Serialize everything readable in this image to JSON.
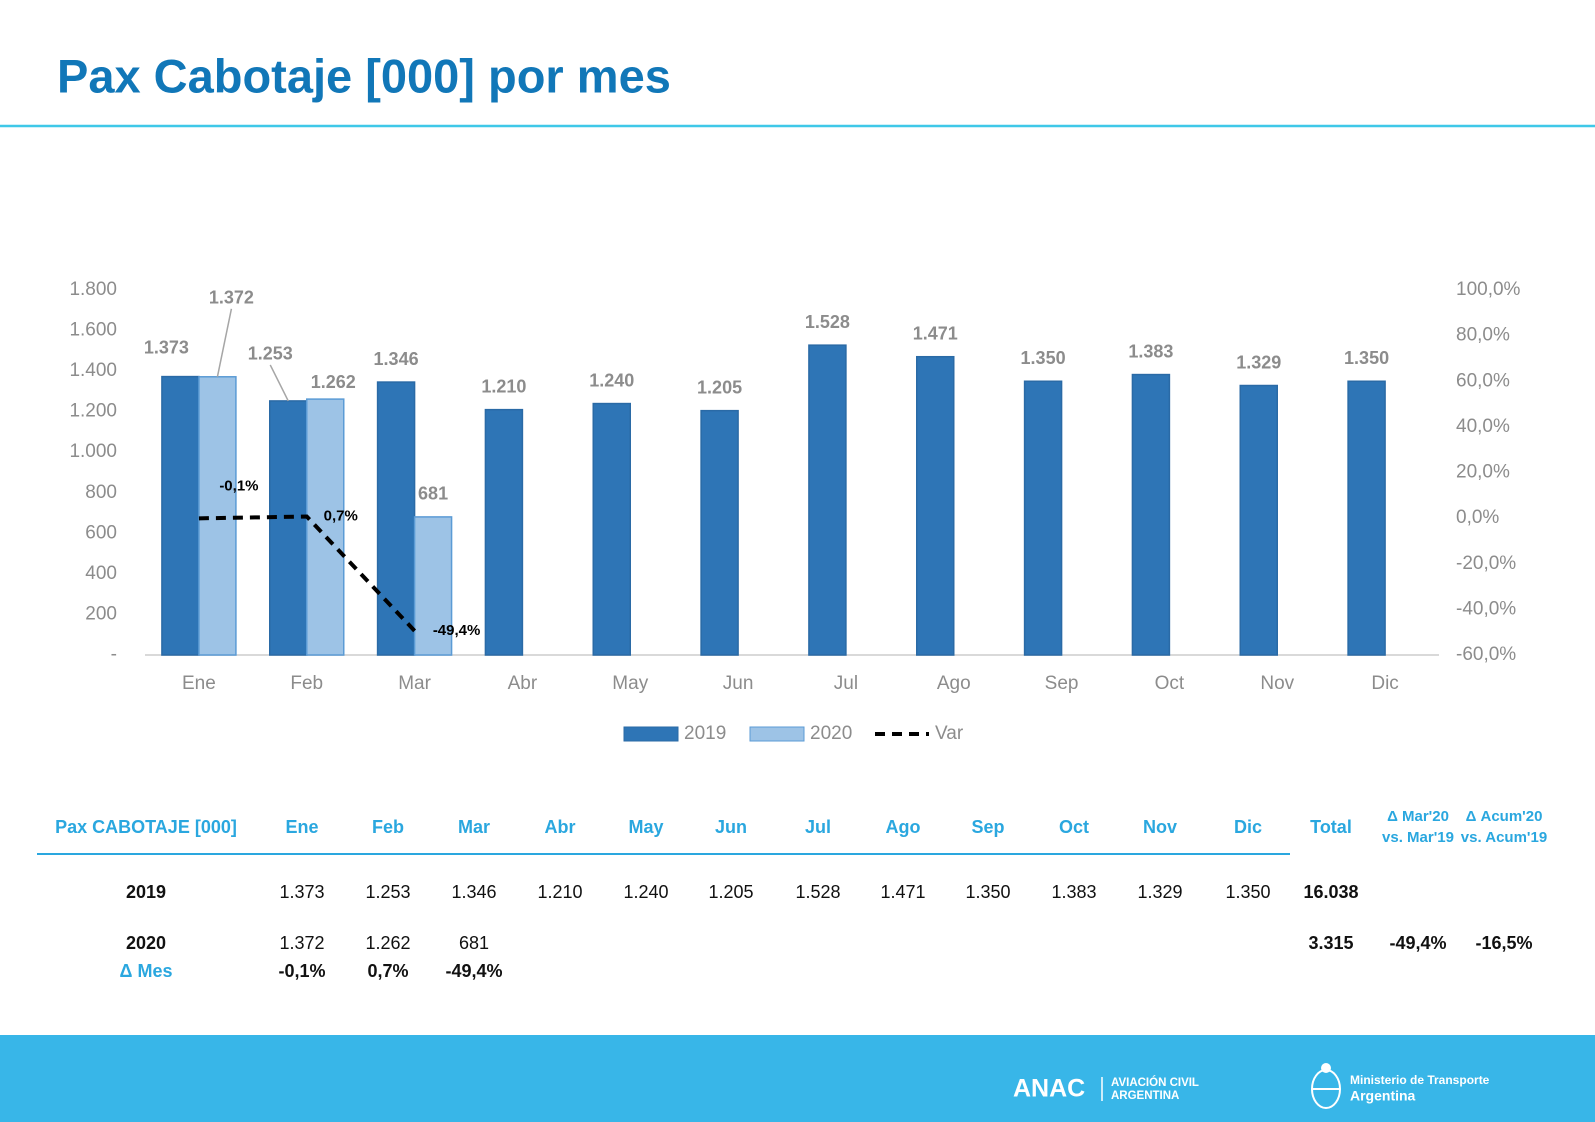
{
  "chart_data": {
    "type": "bar",
    "title": "Pax Cabotaje [000] por mes",
    "categories": [
      "Ene",
      "Feb",
      "Mar",
      "Abr",
      "May",
      "Jun",
      "Jul",
      "Ago",
      "Sep",
      "Oct",
      "Nov",
      "Dic"
    ],
    "series": [
      {
        "name": "2019",
        "color": "#2e75b6",
        "values": [
          1373,
          1253,
          1346,
          1210,
          1240,
          1205,
          1528,
          1471,
          1350,
          1383,
          1329,
          1350
        ],
        "value_labels": [
          "1.373",
          "1.253",
          "1.346",
          "1.210",
          "1.240",
          "1.205",
          "1.528",
          "1.471",
          "1.350",
          "1.383",
          "1.329",
          "1.350"
        ]
      },
      {
        "name": "2020",
        "color": "#9dc3e6",
        "values": [
          1372,
          1262,
          681,
          null,
          null,
          null,
          null,
          null,
          null,
          null,
          null,
          null
        ],
        "value_labels": [
          "1.372",
          "1.262",
          "681",
          null,
          null,
          null,
          null,
          null,
          null,
          null,
          null,
          null
        ]
      },
      {
        "name": "Var",
        "type": "line",
        "axis": "y2",
        "color": "#000000",
        "values": [
          -0.1,
          0.7,
          -49.4,
          null,
          null,
          null,
          null,
          null,
          null,
          null,
          null,
          null
        ],
        "value_labels": [
          "-0,1%",
          "0,7%",
          "-49,4%",
          null,
          null,
          null,
          null,
          null,
          null,
          null,
          null,
          null
        ]
      }
    ],
    "ylim": [
      0,
      1800
    ],
    "yticks": [
      {
        "value": 0,
        "label": "-"
      },
      {
        "value": 200,
        "label": "200"
      },
      {
        "value": 400,
        "label": "400"
      },
      {
        "value": 600,
        "label": "600"
      },
      {
        "value": 800,
        "label": "800"
      },
      {
        "value": 1000,
        "label": "1.000"
      },
      {
        "value": 1200,
        "label": "1.200"
      },
      {
        "value": 1400,
        "label": "1.400"
      },
      {
        "value": 1600,
        "label": "1.600"
      },
      {
        "value": 1800,
        "label": "1.800"
      }
    ],
    "y2lim": [
      -60,
      100
    ],
    "y2ticks": [
      {
        "value": -60,
        "label": "-60,0%"
      },
      {
        "value": -40,
        "label": "-40,0%"
      },
      {
        "value": -20,
        "label": "-20,0%"
      },
      {
        "value": 0,
        "label": "0,0%"
      },
      {
        "value": 20,
        "label": "20,0%"
      },
      {
        "value": 40,
        "label": "40,0%"
      },
      {
        "value": 60,
        "label": "60,0%"
      },
      {
        "value": 80,
        "label": "80,0%"
      },
      {
        "value": 100,
        "label": "100,0%"
      }
    ],
    "grid": false,
    "legend": "bottom"
  },
  "table": {
    "header": [
      "Pax CABOTAJE  [000]",
      "Ene",
      "Feb",
      "Mar",
      "Abr",
      "May",
      "Jun",
      "Jul",
      "Ago",
      "Sep",
      "Oct",
      "Nov",
      "Dic",
      "Total"
    ],
    "deltas": [
      [
        "Δ Mar'20",
        "vs. Mar'19"
      ],
      [
        "Δ Acum'20",
        "vs. Acum'19"
      ]
    ],
    "rows": [
      {
        "label": "2019",
        "values": [
          "1.373",
          "1.253",
          "1.346",
          "1.210",
          "1.240",
          "1.205",
          "1.528",
          "1.471",
          "1.350",
          "1.383",
          "1.329",
          "1.350"
        ],
        "total": "16.038"
      },
      {
        "label": "2020",
        "values": [
          "1.372",
          "1.262",
          "681"
        ],
        "total": "3.315",
        "deltas": [
          "-49,4%",
          "-16,5%"
        ]
      },
      {
        "label": "Δ Mes",
        "values": [
          "-0,1%",
          "0,7%",
          "-49,4%"
        ]
      }
    ]
  },
  "footer": {
    "anac": "ANAC",
    "anac_sub": [
      "AVIACIÓN CIVIL",
      "ARGENTINA"
    ],
    "ministry": [
      "Ministerio de Transporte",
      "Argentina"
    ]
  }
}
